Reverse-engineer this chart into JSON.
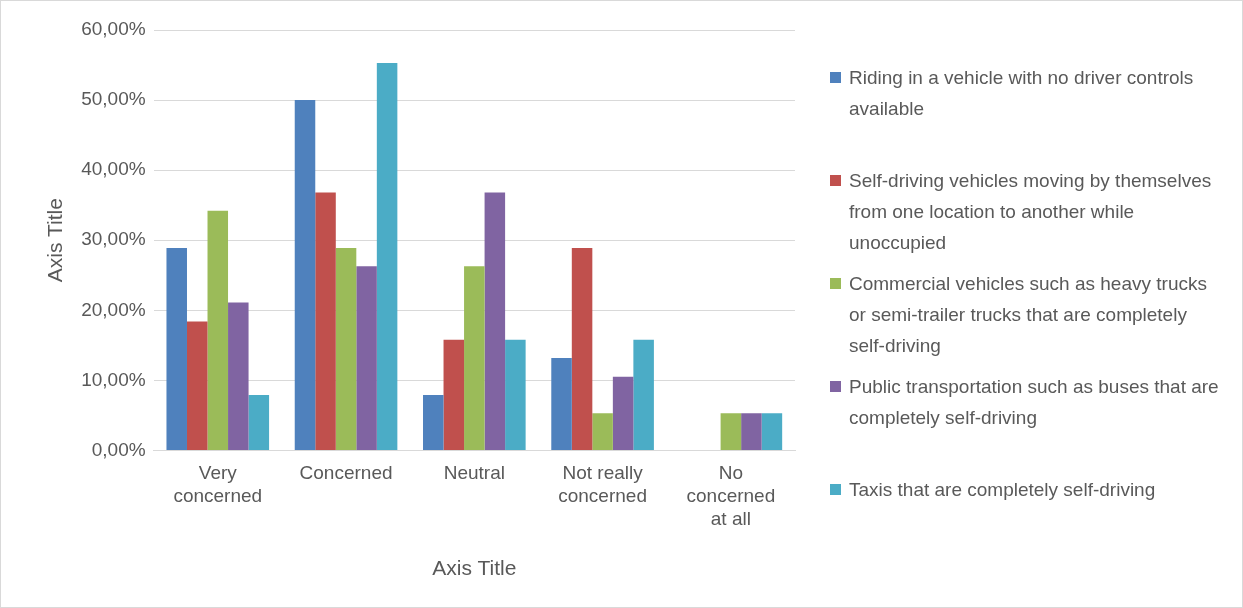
{
  "chart_data": {
    "type": "bar",
    "xlabel": "Axis Title",
    "ylabel": "Axis Title",
    "categories": [
      "Very concerned",
      "Concerned",
      "Neutral",
      "Not really concerned",
      "No concerned at all"
    ],
    "series": [
      {
        "name": "Riding in a vehicle with no driver controls available",
        "color": "#4f81bd",
        "values": [
          28.9,
          50.0,
          7.9,
          13.2,
          0
        ]
      },
      {
        "name": "Self-driving vehicles moving by themselves from one location to another while unoccupied",
        "color": "#c0504d",
        "values": [
          18.4,
          36.8,
          15.8,
          28.9,
          0
        ]
      },
      {
        "name": "Commercial vehicles such as heavy trucks or semi-trailer trucks that are completely self-driving",
        "color": "#9bbb59",
        "values": [
          34.2,
          28.9,
          26.3,
          5.3,
          5.3
        ]
      },
      {
        "name": "Public transportation such as buses that are completely self-driving",
        "color": "#8064a2",
        "values": [
          21.1,
          26.3,
          36.8,
          10.5,
          5.3
        ]
      },
      {
        "name": "Taxis that are completely self-driving",
        "color": "#4bacc6",
        "values": [
          7.9,
          55.3,
          15.8,
          15.8,
          5.3
        ]
      }
    ],
    "ylim": [
      0,
      60
    ],
    "yticks": [
      {
        "value": 0,
        "label": "0,00%"
      },
      {
        "value": 10,
        "label": "10,00%"
      },
      {
        "value": 20,
        "label": "20,00%"
      },
      {
        "value": 30,
        "label": "30,00%"
      },
      {
        "value": 40,
        "label": "40,00%"
      },
      {
        "value": 50,
        "label": "50,00%"
      },
      {
        "value": 60,
        "label": "60,00%"
      }
    ],
    "grid": "y",
    "legend": "right"
  }
}
